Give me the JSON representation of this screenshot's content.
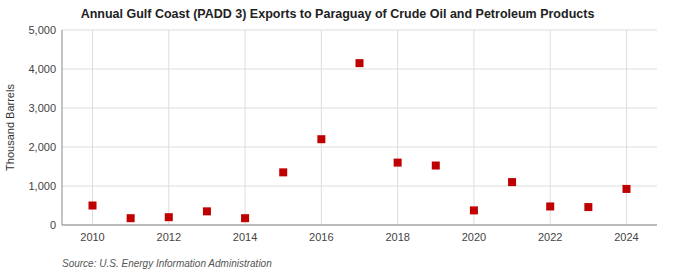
{
  "chart_data": {
    "type": "scatter",
    "title": "Annual Gulf Coast (PADD 3) Exports to Paraguay of Crude Oil and Petroleum Products",
    "ylabel": "Thousand Barrels",
    "source": "Source: U.S. Energy Information Administration",
    "x": [
      2010,
      2011,
      2012,
      2013,
      2014,
      2015,
      2016,
      2017,
      2018,
      2019,
      2020,
      2021,
      2022,
      2023,
      2024
    ],
    "values": [
      500,
      175,
      200,
      350,
      175,
      1350,
      2200,
      4150,
      1600,
      1525,
      375,
      1100,
      475,
      460,
      925
    ],
    "color": "#c00000",
    "marker": "square",
    "xlim": [
      2009.2,
      2024.8
    ],
    "xticks": [
      2010,
      2012,
      2014,
      2016,
      2018,
      2020,
      2022,
      2024
    ],
    "ylim": [
      0,
      5000
    ],
    "yticks": [
      0,
      {
        "value": 1000,
        "label": "1,000"
      },
      {
        "value": 2000,
        "label": "2,000"
      },
      {
        "value": 3000,
        "label": "3,000"
      },
      {
        "value": 4000,
        "label": "4,000"
      },
      {
        "value": 5000,
        "label": "5,000"
      }
    ],
    "grid": true
  }
}
